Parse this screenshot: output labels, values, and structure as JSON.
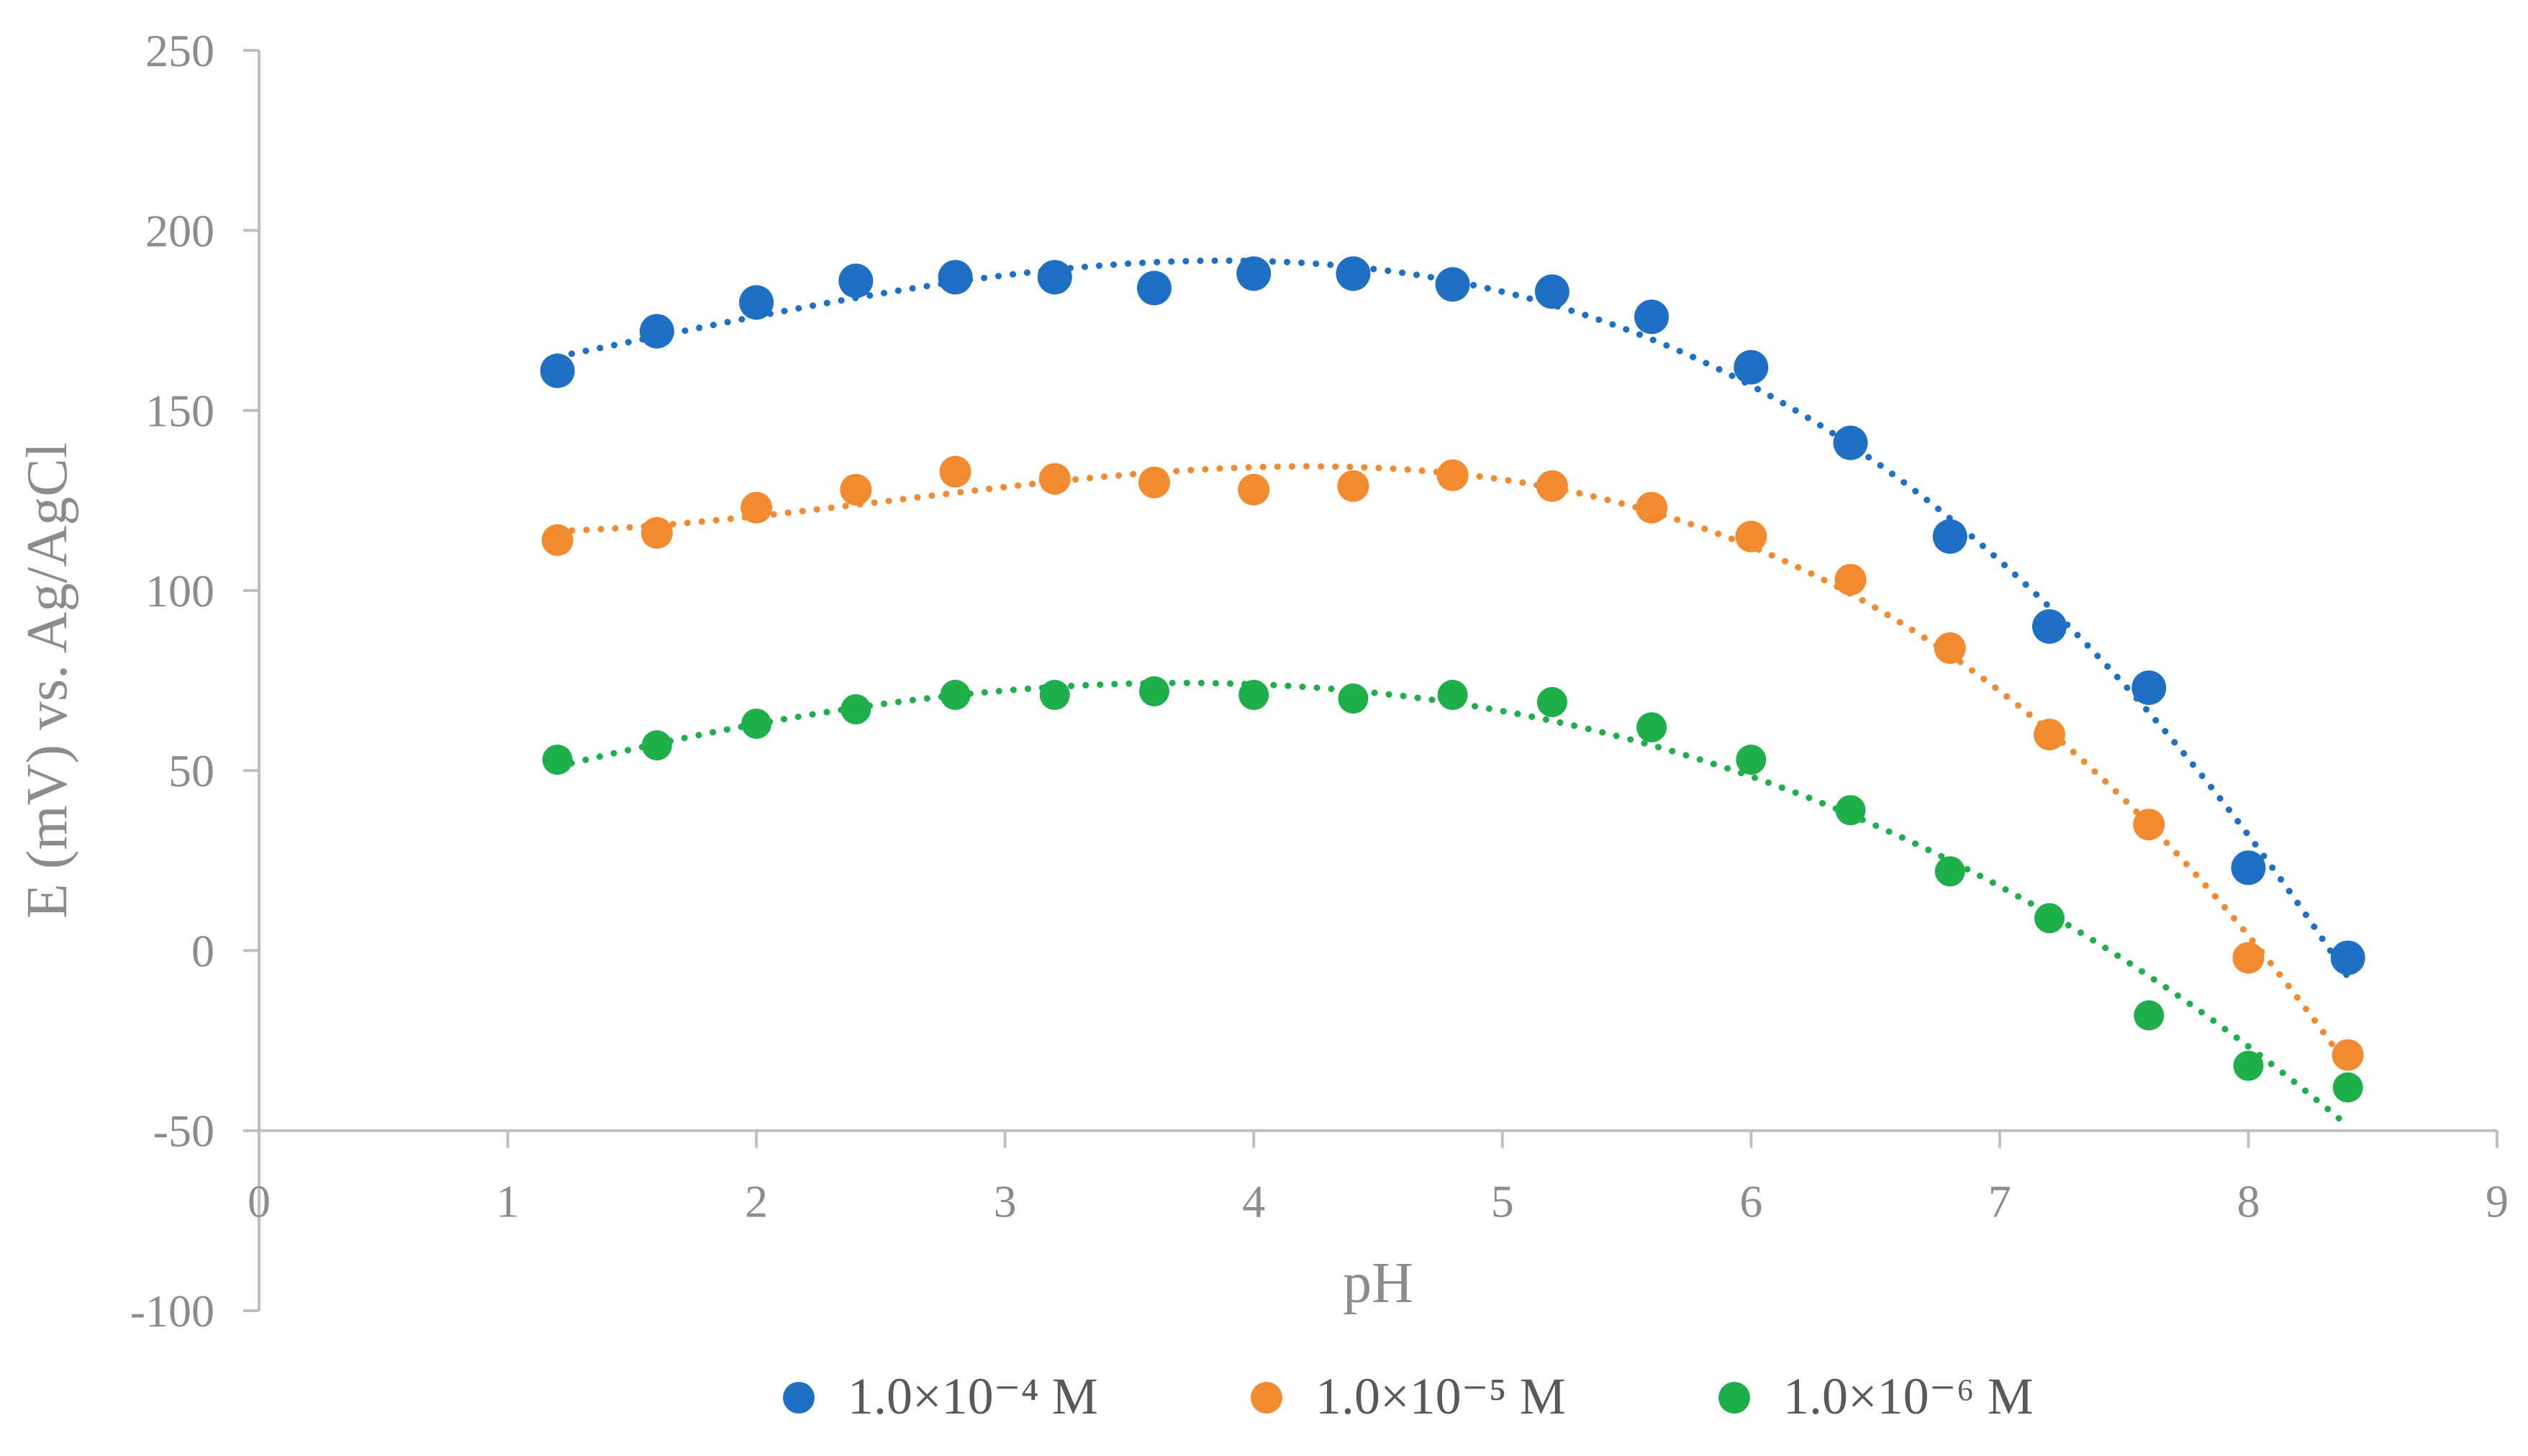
{
  "chart_data": {
    "type": "scatter",
    "title": "",
    "xlabel": "pH",
    "ylabel": "E (mV) vs. Ag/AgCl",
    "xlim": [
      0,
      9
    ],
    "ylim": [
      -100,
      250
    ],
    "x_ticks": [
      0,
      1,
      2,
      3,
      4,
      5,
      6,
      7,
      8,
      9
    ],
    "y_ticks": [
      250,
      200,
      150,
      100,
      50,
      0,
      -50,
      -100
    ],
    "x_axis_at_y": -50,
    "grid": false,
    "legend_position": "bottom",
    "trendline": "polynomial, dotted",
    "x": [
      1.2,
      1.6,
      2.0,
      2.4,
      2.8,
      3.2,
      3.6,
      4.0,
      4.4,
      4.8,
      5.2,
      5.6,
      6.0,
      6.4,
      6.8,
      7.2,
      7.6,
      8.0,
      8.4
    ],
    "series": [
      {
        "name": "1.0×10⁻⁴ M",
        "color": "#1f6fc5",
        "values": [
          161,
          172,
          180,
          186,
          187,
          187,
          184,
          188,
          188,
          185,
          183,
          176,
          162,
          141,
          115,
          90,
          73,
          23,
          -2
        ]
      },
      {
        "name": "1.0×10⁻⁵ M",
        "color": "#f28a30",
        "values": [
          114,
          116,
          123,
          128,
          133,
          131,
          130,
          128,
          129,
          132,
          129,
          123,
          115,
          103,
          84,
          60,
          35,
          -2,
          -29
        ]
      },
      {
        "name": "1.0×10⁻⁶ M",
        "color": "#1eaf4b",
        "values": [
          53,
          57,
          63,
          67,
          71,
          71,
          72,
          71,
          70,
          71,
          69,
          62,
          53,
          39,
          22,
          9,
          -18,
          -32,
          -38
        ]
      }
    ]
  }
}
